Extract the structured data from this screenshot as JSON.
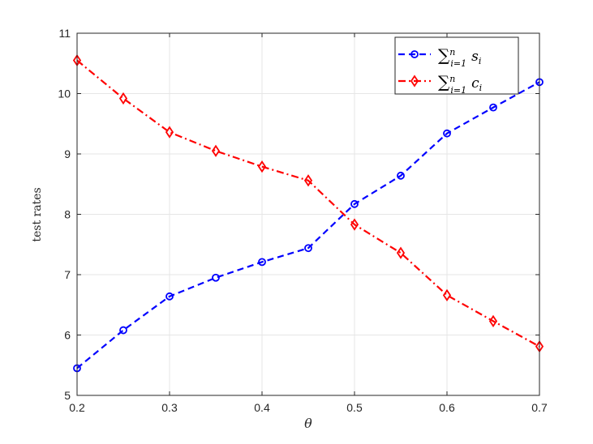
{
  "chart_data": {
    "type": "line",
    "title": "",
    "xlabel": "θ",
    "ylabel": "test rates",
    "xlim": [
      0.2,
      0.7
    ],
    "ylim": [
      5,
      11
    ],
    "xticks": [
      "0.2",
      "0.3",
      "0.4",
      "0.5",
      "0.6",
      "0.7"
    ],
    "yticks": [
      "5",
      "6",
      "7",
      "8",
      "9",
      "10",
      "11"
    ],
    "grid": true,
    "legend_position": "top-right",
    "x": [
      0.2,
      0.25,
      0.3,
      0.35,
      0.4,
      0.45,
      0.5,
      0.55,
      0.6,
      0.65,
      0.7
    ],
    "series": [
      {
        "name": "∑ⁿᵢ₌₁ sᵢ",
        "color": "#0000ff",
        "linestyle": "dashed",
        "marker": "circle",
        "values": [
          5.45,
          6.08,
          6.64,
          6.95,
          7.21,
          7.44,
          8.17,
          8.64,
          9.34,
          9.77,
          10.19
        ]
      },
      {
        "name": "∑ⁿᵢ₌₁ cᵢ",
        "color": "#ff0000",
        "linestyle": "dash-dot",
        "marker": "diamond",
        "values": [
          10.55,
          9.92,
          9.36,
          9.05,
          8.79,
          8.56,
          7.83,
          7.36,
          6.66,
          6.23,
          5.81
        ]
      }
    ]
  }
}
